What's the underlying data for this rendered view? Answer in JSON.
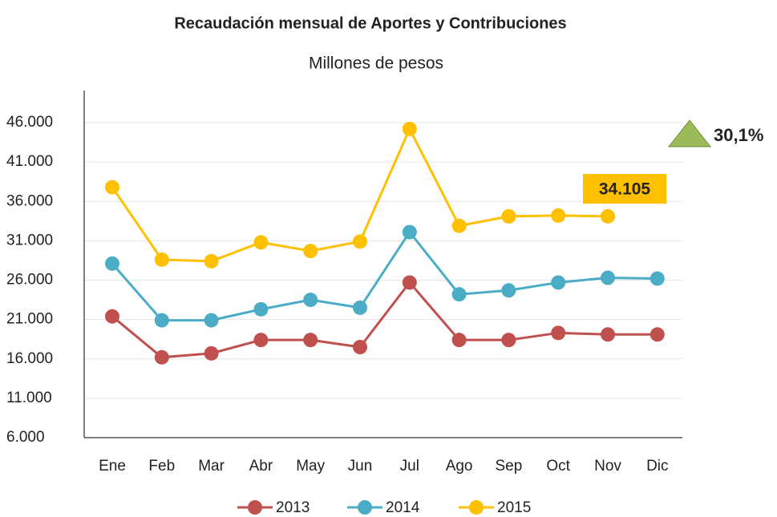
{
  "chart_data": {
    "type": "line",
    "title": "Recaudación mensual de Aportes y Contribuciones",
    "subtitle": "Millones de pesos",
    "categories": [
      "Ene",
      "Feb",
      "Mar",
      "Abr",
      "May",
      "Jun",
      "Jul",
      "Ago",
      "Sep",
      "Oct",
      "Nov",
      "Dic"
    ],
    "series": [
      {
        "name": "2013",
        "color": "#c0504d",
        "values": [
          21400,
          16200,
          16700,
          18400,
          18400,
          17500,
          25700,
          18400,
          18400,
          19300,
          19100,
          19100
        ]
      },
      {
        "name": "2014",
        "color": "#4bacc6",
        "values": [
          28100,
          20900,
          20900,
          22300,
          23500,
          22500,
          32100,
          24200,
          24700,
          25700,
          26300,
          26200
        ]
      },
      {
        "name": "2015",
        "color": "#ffc000",
        "values": [
          37800,
          28600,
          28400,
          30800,
          29700,
          30900,
          45200,
          32900,
          34100,
          34200,
          34105,
          null
        ]
      }
    ],
    "ylim": [
      6000,
      46000
    ],
    "yticks": [
      {
        "value": 6000,
        "label": "6.000"
      },
      {
        "value": 11000,
        "label": "11.000"
      },
      {
        "value": 16000,
        "label": "16.000"
      },
      {
        "value": 21000,
        "label": "21.000"
      },
      {
        "value": 26000,
        "label": "26.000"
      },
      {
        "value": 31000,
        "label": "31.000"
      },
      {
        "value": 36000,
        "label": "36.000"
      },
      {
        "value": 41000,
        "label": "41.000"
      },
      {
        "value": 46000,
        "label": "46.000"
      }
    ],
    "grid": true,
    "legend": "bottom",
    "annotations": [
      {
        "text": "34.105",
        "color": "#ffc000"
      },
      {
        "text": "30,1%",
        "color": "#9bbb59"
      }
    ]
  }
}
